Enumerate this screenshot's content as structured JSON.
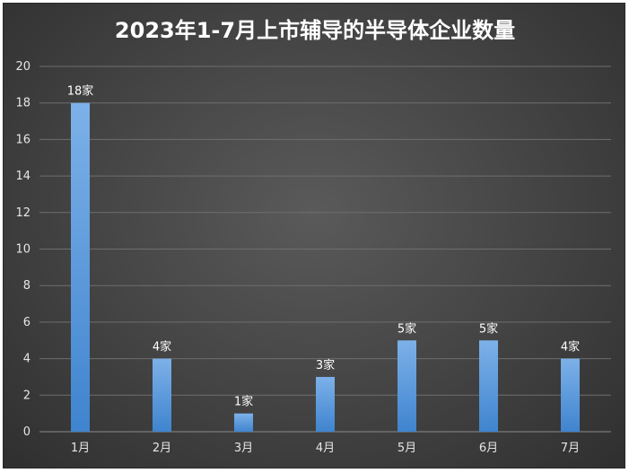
{
  "chart_data": {
    "type": "bar",
    "title": "2023年1-7月上市辅导的半导体企业数量",
    "categories": [
      "1月",
      "2月",
      "3月",
      "4月",
      "5月",
      "6月",
      "7月"
    ],
    "values": [
      18,
      4,
      1,
      3,
      5,
      5,
      4
    ],
    "data_labels": [
      "18家",
      "4家",
      "1家",
      "3家",
      "5家",
      "5家",
      "4家"
    ],
    "yticks": [
      "0",
      "2",
      "4",
      "6",
      "8",
      "10",
      "12",
      "14",
      "16",
      "18",
      "20"
    ],
    "ylim": [
      0,
      20
    ],
    "grid": true,
    "legend": "none",
    "xlabel": "",
    "ylabel": "",
    "colors": {
      "bar_top": "#7db1e8",
      "bar_bottom": "#3f84cf",
      "background": "#474747"
    }
  }
}
